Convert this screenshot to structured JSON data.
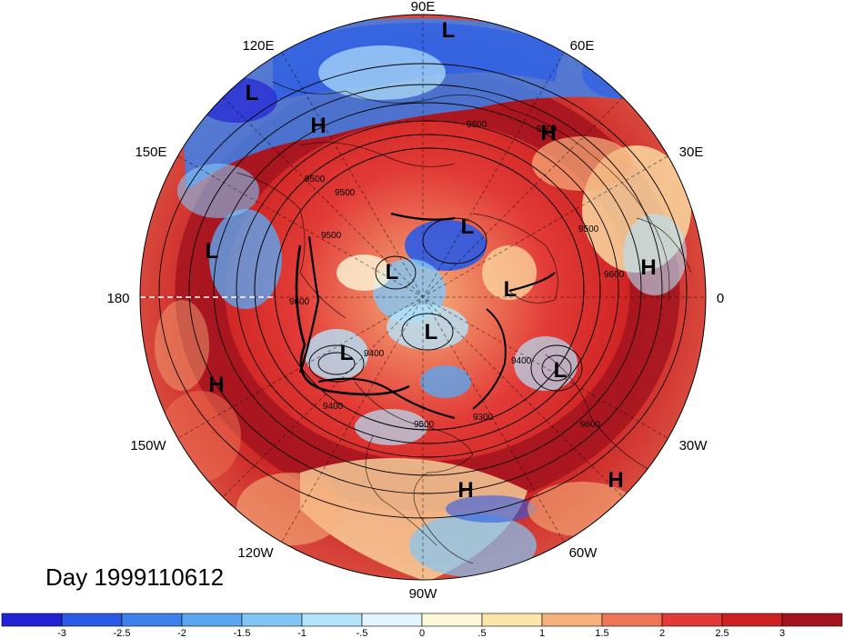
{
  "title": "Day 1999110612",
  "longitude_labels": {
    "top": "90E",
    "upper_left": "120E",
    "upper_right": "60E",
    "left_upper": "150E",
    "right_upper": "30E",
    "left": "180",
    "right": "0",
    "left_lower": "150W",
    "right_lower": "30W",
    "lower_left": "120W",
    "lower_right": "60W",
    "bottom": "90W"
  },
  "pressure_centers": [
    {
      "type": "L",
      "name": "low-90e"
    },
    {
      "type": "L",
      "name": "low-120e"
    },
    {
      "type": "H",
      "name": "high-siberia-west"
    },
    {
      "type": "H",
      "name": "high-siberia-east"
    },
    {
      "type": "L",
      "name": "low-kara-sea"
    },
    {
      "type": "L",
      "name": "low-pacific"
    },
    {
      "type": "H",
      "name": "high-europe"
    },
    {
      "type": "L",
      "name": "low-arctic-central"
    },
    {
      "type": "L",
      "name": "low-norway"
    },
    {
      "type": "L",
      "name": "low-alaska"
    },
    {
      "type": "L",
      "name": "low-canada"
    },
    {
      "type": "L",
      "name": "low-atlantic"
    },
    {
      "type": "H",
      "name": "high-east-pacific"
    },
    {
      "type": "H",
      "name": "high-caribbean"
    },
    {
      "type": "H",
      "name": "high-azores"
    }
  ],
  "contour_labels": [
    "9600",
    "9500",
    "9500",
    "9500",
    "9400",
    "9600",
    "9600",
    "9400",
    "9400",
    "9500",
    "9500",
    "9300",
    "9600",
    "9600"
  ],
  "colorbar": {
    "levels": [
      "-3",
      "-2.5",
      "-2",
      "-1.5",
      "-1",
      "-.5",
      "0",
      ".5",
      "1",
      "1.5",
      "2",
      "2.5",
      "3"
    ],
    "colors": [
      "#2323d6",
      "#2b5be6",
      "#3d82ec",
      "#5aa6f0",
      "#82c6f6",
      "#b4e4fb",
      "#e4f6fd",
      "#fdf8d8",
      "#fde4a8",
      "#f6b07c",
      "#ee7656",
      "#e23a36",
      "#cc2222",
      "#a3141f"
    ]
  },
  "palette": {
    "ocean_warm": "#c82626",
    "deep_red": "#a3141f",
    "cold_blue": "#2b5be6",
    "neutral": "#fdf8d8"
  }
}
